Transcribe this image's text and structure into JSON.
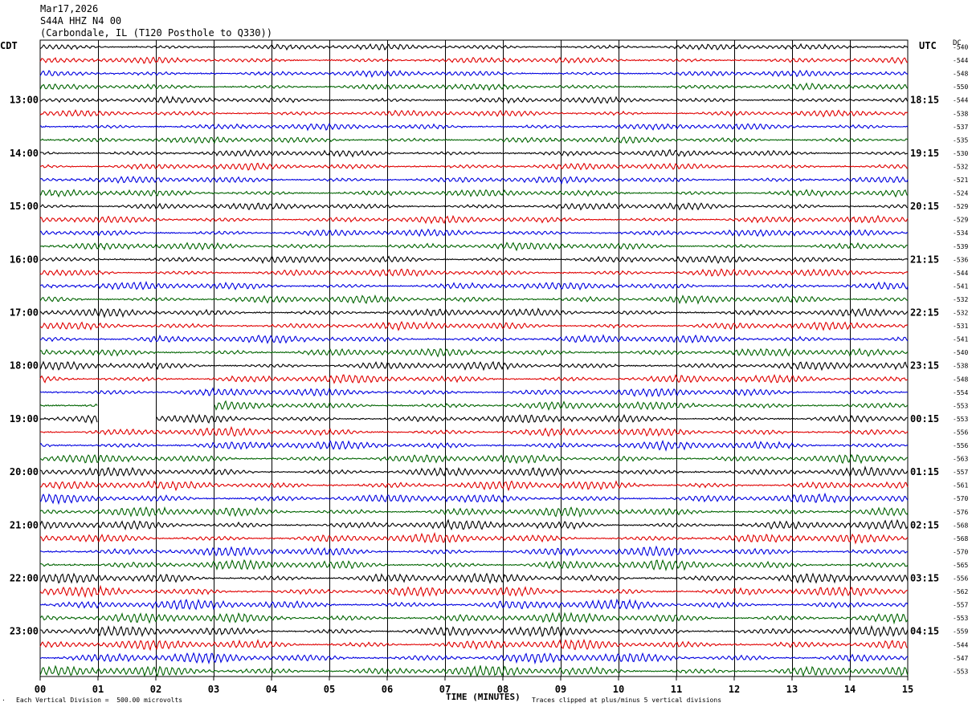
{
  "header": {
    "date": "Mar17,2026",
    "station": "S44A HHZ N4 00",
    "location": "(Carbondale, IL (T120 Posthole to Q330))"
  },
  "left_axis_label": "CDT",
  "right_axis_label": "UTC",
  "dc_label": "DC",
  "footer": {
    "scale_note": "Each Vertical Division =  500.00 microvolts",
    "clip_note": "Traces clipped at plus/minus 5 vertical divisions",
    "corner_mark": "."
  },
  "colors": {
    "trace_cycle": [
      "#000000",
      "#e00000",
      "#0000e0",
      "#006400"
    ],
    "grid": "#000000",
    "background": "#ffffff"
  },
  "chart_data": {
    "type": "line",
    "title": "Mar17,2026",
    "xlabel": "TIME (MINUTES)",
    "ylabel": "",
    "xlim": [
      0,
      15
    ],
    "x_ticks": [
      "00",
      "01",
      "02",
      "03",
      "04",
      "05",
      "06",
      "07",
      "08",
      "09",
      "10",
      "11",
      "12",
      "13",
      "14",
      "15"
    ],
    "left_hour_labels": [
      "13:00",
      "14:00",
      "15:00",
      "16:00",
      "17:00",
      "18:00",
      "19:00",
      "20:00",
      "21:00",
      "22:00",
      "23:00"
    ],
    "right_hour_labels": [
      "18:15",
      "19:15",
      "20:15",
      "21:15",
      "22:15",
      "23:15",
      "00:15",
      "01:15",
      "02:15",
      "03:15",
      "04:15"
    ],
    "traces_per_hour": 4,
    "dc_offsets": [
      "-540",
      "-544",
      "-548",
      "-550",
      "-544",
      "-538",
      "-537",
      "-535",
      "-530",
      "-532",
      "-521",
      "-524",
      "-529",
      "-529",
      "-534",
      "-539",
      "-536",
      "-544",
      "-541",
      "-532",
      "-532",
      "-531",
      "-541",
      "-540",
      "-538",
      "-548",
      "-554",
      "-553",
      "-553",
      "-556",
      "-556",
      "-563",
      "-557",
      "-561",
      "-570",
      "-576",
      "-568",
      "-568",
      "-570",
      "-565",
      "-556",
      "-562",
      "-557",
      "-553",
      "-559",
      "-544",
      "-547",
      "-553"
    ],
    "data_gaps": [
      {
        "trace": 27,
        "from_minute": 1.0,
        "to_minute": 3.0
      },
      {
        "trace": 28,
        "from_minute": 1.0,
        "to_minute": 2.0
      }
    ]
  }
}
